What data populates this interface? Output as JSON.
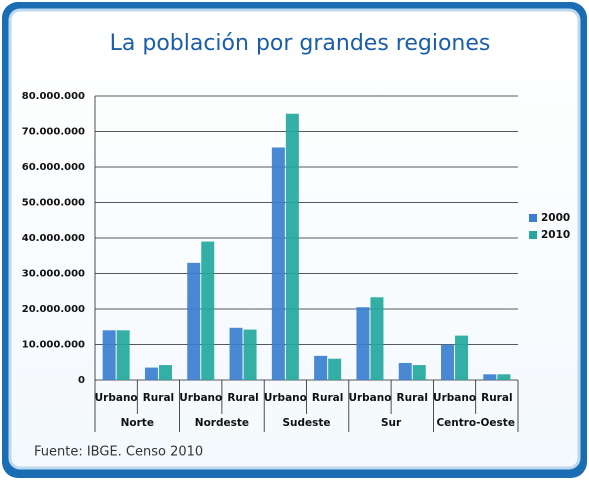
{
  "chart_data": {
    "type": "bar",
    "title": "La población por grandes regiones",
    "categories": [
      "Urbano",
      "Rural",
      "Urbano",
      "Rural",
      "Urbano",
      "Rural",
      "Urbano",
      "Rural",
      "Urbano",
      "Rural"
    ],
    "groups": [
      "Norte",
      "Nordeste",
      "Sudeste",
      "Sur",
      "Centro-Oeste"
    ],
    "series": [
      {
        "name": "2000",
        "color": "#3a7fd0",
        "values": [
          14,
          3.5,
          33,
          14.7,
          65.5,
          6.8,
          20.5,
          4.8,
          10,
          1.6
        ]
      },
      {
        "name": "2010",
        "color": "#22a89e",
        "values": [
          14,
          4.2,
          39,
          14.2,
          75,
          6,
          23.3,
          4.2,
          12.5,
          1.6
        ]
      }
    ],
    "ylim": [
      0,
      80
    ],
    "yticks": [
      0,
      {
        "value": 10,
        "label": "10.000.000"
      },
      {
        "value": 20,
        "label": "20.000.000"
      },
      {
        "value": 30,
        "label": "30.000.000"
      },
      {
        "value": 40,
        "label": "40.000.000"
      },
      {
        "value": 50,
        "label": "50.000.000"
      },
      {
        "value": 60,
        "label": "60.000.000"
      },
      {
        "value": 70,
        "label": "70.000.000"
      },
      {
        "value": 80,
        "label": "80.000.000"
      }
    ],
    "grid": true,
    "legend": "right",
    "source": "Fuente: IBGE. Censo 2010"
  }
}
